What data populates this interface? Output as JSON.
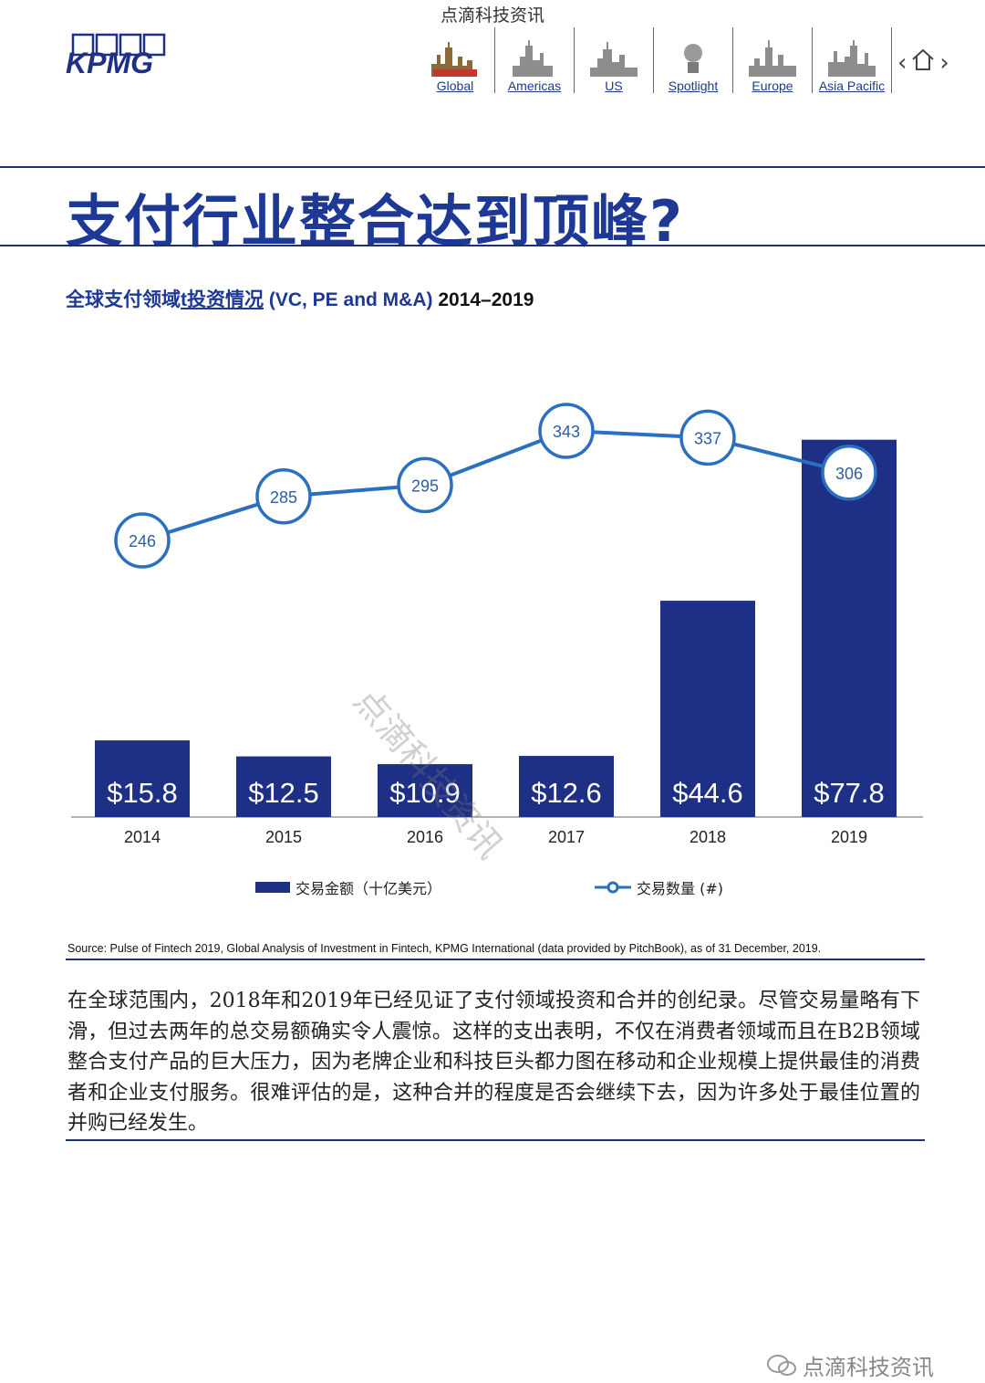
{
  "header": {
    "watermark": "点滴科技资讯",
    "logo_text": "KPMG",
    "nav": [
      {
        "label": "Global",
        "icon": "global-skyline-icon"
      },
      {
        "label": "Americas",
        "icon": "americas-skyline-icon"
      },
      {
        "label": "US",
        "icon": "us-skyline-icon"
      },
      {
        "label": "Spotlight",
        "icon": "spotlight-icon"
      },
      {
        "label": "Europe",
        "icon": "europe-skyline-icon"
      },
      {
        "label": "Asia Pacific",
        "icon": "asia-pacific-skyline-icon"
      }
    ],
    "prev_arrow": "‹",
    "home_icon": "home-icon",
    "next_arrow": "›"
  },
  "headline": "支付行业整合达到顶峰?",
  "chart_title": {
    "part1": "全球支付领域",
    "part2": "t投资情况",
    "part3": " (VC, PE and M&A) ",
    "part4": "2014–2019"
  },
  "chart_data": {
    "type": "bar",
    "categories": [
      "2014",
      "2015",
      "2016",
      "2017",
      "2018",
      "2019"
    ],
    "series": [
      {
        "name": "交易金额（十亿美元）",
        "type": "bar",
        "values": [
          15.8,
          12.5,
          10.9,
          12.6,
          44.6,
          77.8
        ],
        "labels": [
          "$15.8",
          "$12.5",
          "$10.9",
          "$12.6",
          "$44.6",
          "$77.8"
        ]
      },
      {
        "name": "交易数量 (#)",
        "type": "line",
        "values": [
          246,
          285,
          295,
          343,
          337,
          306
        ]
      }
    ],
    "colors": {
      "bar": "#1e2f86",
      "line": "#2a6fc0",
      "marker_fill": "#ffffff"
    },
    "legend_position": "bottom"
  },
  "legend": {
    "bar_label": "交易金额（十亿美元）",
    "line_label": "交易数量 (#)"
  },
  "source": "Source: Pulse of Fintech 2019, Global Analysis of Investment in Fintech, KPMG International (data provided by PitchBook), as of 31 December, 2019.",
  "body_text": "在全球范围内，2018年和2019年已经见证了支付领域投资和合并的创纪录。尽管交易量略有下滑，但过去两年的总交易额确实令人震惊。这样的支出表明，不仅在消费者领域而且在B2B领域整合支付产品的巨大压力，因为老牌企业和科技巨头都力图在移动和企业规模上提供最佳的消费者和企业支付服务。很难评估的是，这种合并的程度是否会继续下去，因为许多处于最佳位置的并购已经发生。",
  "chart_watermark": "点滴科技资讯",
  "footer_watermark": "点滴科技资讯"
}
